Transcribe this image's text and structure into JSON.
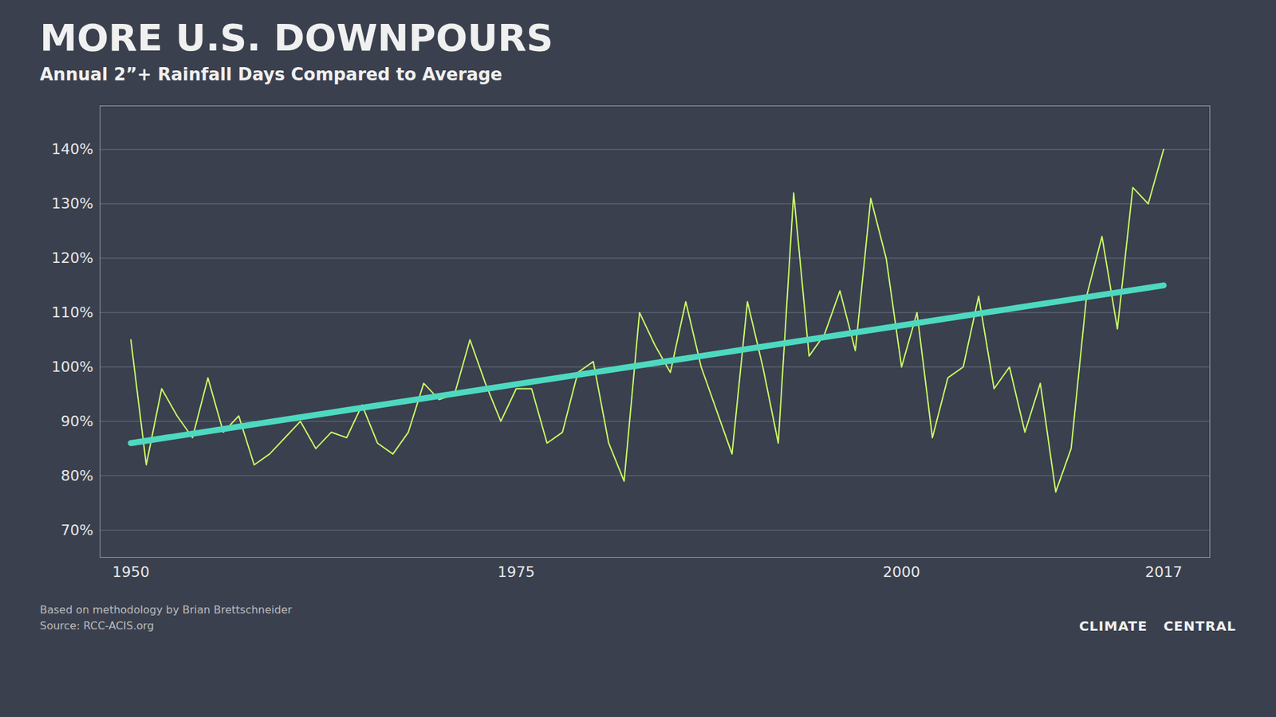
{
  "chart_data": {
    "type": "line",
    "title": "MORE U.S. DOWNPOURS",
    "subtitle": "Annual 2”+ Rainfall Days Compared to Average",
    "annotations": [
      "Based on methodology by Brian Brettschneider",
      "Source: RCC-ACIS.org",
      "CLIMATE",
      "CENTRAL"
    ],
    "x": [
      1950,
      1951,
      1952,
      1953,
      1954,
      1955,
      1956,
      1957,
      1958,
      1959,
      1960,
      1961,
      1962,
      1963,
      1964,
      1965,
      1966,
      1967,
      1968,
      1969,
      1970,
      1971,
      1972,
      1973,
      1974,
      1975,
      1976,
      1977,
      1978,
      1979,
      1980,
      1981,
      1982,
      1983,
      1984,
      1985,
      1986,
      1987,
      1988,
      1989,
      1990,
      1991,
      1992,
      1993,
      1994,
      1995,
      1996,
      1997,
      1998,
      1999,
      2000,
      2001,
      2002,
      2003,
      2004,
      2005,
      2006,
      2007,
      2008,
      2009,
      2010,
      2011,
      2012,
      2013,
      2014,
      2015,
      2016,
      2017
    ],
    "values": [
      105,
      82,
      96,
      91,
      87,
      98,
      88,
      91,
      82,
      84,
      87,
      90,
      85,
      88,
      87,
      93,
      86,
      84,
      88,
      97,
      94,
      95,
      105,
      97,
      90,
      96,
      96,
      86,
      88,
      99,
      101,
      86,
      79,
      110,
      104,
      99,
      112,
      100,
      92,
      84,
      112,
      100,
      86,
      132,
      102,
      106,
      114,
      103,
      131,
      120,
      100,
      110,
      87,
      98,
      100,
      113,
      96,
      100,
      88,
      97,
      77,
      85,
      113,
      124,
      107,
      133,
      130,
      140
    ],
    "color": "#ccff66",
    "trend": {
      "x": [
        1950,
        2017
      ],
      "values": [
        86,
        115
      ],
      "color": "#4dd9c0"
    },
    "xlim": [
      1948,
      2020
    ],
    "xticks": [
      1950,
      1975,
      2000,
      2017
    ],
    "ylim": [
      65,
      148
    ],
    "yticks": [
      {
        "value": 70,
        "label": "70%"
      },
      {
        "value": 80,
        "label": "80%"
      },
      {
        "value": 90,
        "label": "90%"
      },
      {
        "value": 100,
        "label": "100%"
      },
      {
        "value": 110,
        "label": "110%"
      },
      {
        "value": 120,
        "label": "120%"
      },
      {
        "value": 130,
        "label": "130%"
      },
      {
        "value": 140,
        "label": "140%"
      }
    ],
    "grid": true
  }
}
